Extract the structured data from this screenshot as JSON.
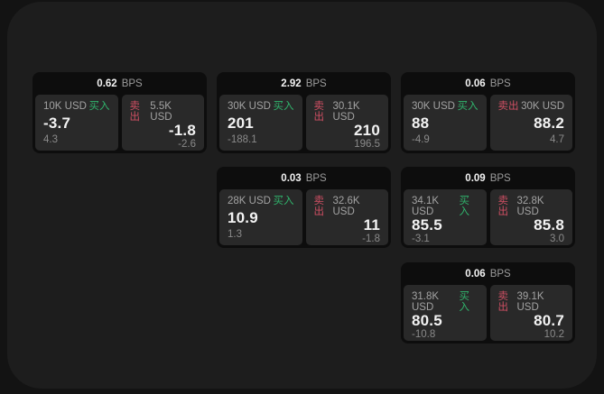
{
  "window": {
    "background": "#131313",
    "panel_background": "#1d1d1d"
  },
  "labels": {
    "bps_unit": "BPS",
    "buy": "买入",
    "sell": "卖出"
  },
  "colors": {
    "buy_green": "#30b46c",
    "sell_red": "#cf4f63",
    "card_background": "#0d0d0d",
    "tile_background": "#292929",
    "value_white": "#f3f3f3",
    "muted_gray": "#a3a3a3",
    "dim_gray": "#8a8a8a"
  },
  "cards": [
    {
      "col": 1,
      "row": 1,
      "bps": "0.62",
      "buy": {
        "amount": "10K USD",
        "price": "-3.7",
        "change": "4.3"
      },
      "sell": {
        "amount": "5.5K USD",
        "price": "-1.8",
        "change": "-2.6"
      }
    },
    {
      "col": 2,
      "row": 1,
      "bps": "2.92",
      "buy": {
        "amount": "30K USD",
        "price": "201",
        "change": "-188.1"
      },
      "sell": {
        "amount": "30.1K USD",
        "price": "210",
        "change": "196.5"
      }
    },
    {
      "col": 3,
      "row": 1,
      "bps": "0.06",
      "buy": {
        "amount": "30K USD",
        "price": "88",
        "change": "-4.9"
      },
      "sell": {
        "amount": "30K USD",
        "price": "88.2",
        "change": "4.7"
      }
    },
    {
      "col": 2,
      "row": 2,
      "bps": "0.03",
      "buy": {
        "amount": "28K USD",
        "price": "10.9",
        "change": "1.3"
      },
      "sell": {
        "amount": "32.6K USD",
        "price": "11",
        "change": "-1.8"
      }
    },
    {
      "col": 3,
      "row": 2,
      "bps": "0.09",
      "buy": {
        "amount": "34.1K USD",
        "price": "85.5",
        "change": "-3.1"
      },
      "sell": {
        "amount": "32.8K USD",
        "price": "85.8",
        "change": "3.0"
      }
    },
    {
      "col": 3,
      "row": 3,
      "bps": "0.06",
      "buy": {
        "amount": "31.8K USD",
        "price": "80.5",
        "change": "-10.8"
      },
      "sell": {
        "amount": "39.1K USD",
        "price": "80.7",
        "change": "10.2"
      }
    }
  ]
}
